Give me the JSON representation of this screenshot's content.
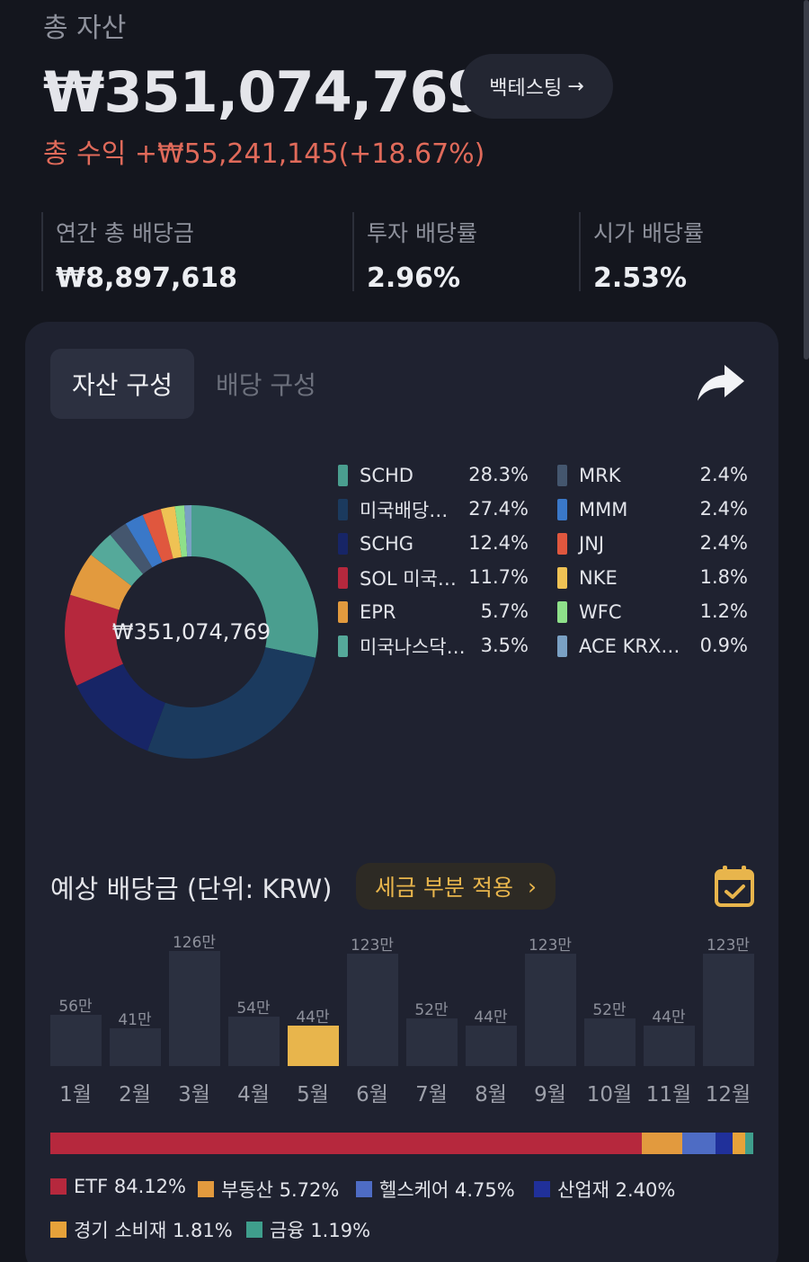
{
  "header": {
    "total_label": "총 자산",
    "total_value": "₩351,074,769",
    "backtest_label": "백테스팅",
    "backtest_arrow": "→",
    "profit_text": "총 수익 +₩55,241,145(+18.67%)"
  },
  "stats": [
    {
      "label": "연간 총 배당금",
      "value": "₩8,897,618"
    },
    {
      "label": "투자 배당률",
      "value": "2.96%"
    },
    {
      "label": "시가 배당률",
      "value": "2.53%"
    }
  ],
  "tabs": {
    "asset": "자산 구성",
    "dividend": "배당 구성"
  },
  "portfolio": {
    "center_value": "₩351,074,769",
    "holdings": [
      {
        "name": "SCHD",
        "pct": "28.3%",
        "value": 28.3,
        "color": "#4a9e8f"
      },
      {
        "name": "미국배당…",
        "pct": "27.4%",
        "value": 27.4,
        "color": "#1b3a5e"
      },
      {
        "name": "SCHG",
        "pct": "12.4%",
        "value": 12.4,
        "color": "#172566"
      },
      {
        "name": "SOL 미국…",
        "pct": "11.7%",
        "value": 11.7,
        "color": "#b6283d"
      },
      {
        "name": "EPR",
        "pct": "5.7%",
        "value": 5.7,
        "color": "#e29a3e"
      },
      {
        "name": "미국나스닥…",
        "pct": "3.5%",
        "value": 3.5,
        "color": "#55a99a"
      },
      {
        "name": "MRK",
        "pct": "2.4%",
        "value": 2.4,
        "color": "#44566e"
      },
      {
        "name": "MMM",
        "pct": "2.4%",
        "value": 2.4,
        "color": "#3a78c8"
      },
      {
        "name": "JNJ",
        "pct": "2.4%",
        "value": 2.4,
        "color": "#e0573e"
      },
      {
        "name": "NKE",
        "pct": "1.8%",
        "value": 1.8,
        "color": "#efc254"
      },
      {
        "name": "WFC",
        "pct": "1.2%",
        "value": 1.2,
        "color": "#8ee08a"
      },
      {
        "name": "ACE KRX…",
        "pct": "0.9%",
        "value": 0.9,
        "color": "#7aa1c4"
      }
    ]
  },
  "dividends": {
    "title": "예상 배당금 (단위: KRW)",
    "tax_label": "세금 부분 적용",
    "tax_arrow": "›",
    "months": [
      {
        "label": "1월",
        "amount": "56만",
        "value": 56
      },
      {
        "label": "2월",
        "amount": "41만",
        "value": 41
      },
      {
        "label": "3월",
        "amount": "126만",
        "value": 126
      },
      {
        "label": "4월",
        "amount": "54만",
        "value": 54
      },
      {
        "label": "5월",
        "amount": "44만",
        "value": 44,
        "active": true
      },
      {
        "label": "6월",
        "amount": "123만",
        "value": 123
      },
      {
        "label": "7월",
        "amount": "52만",
        "value": 52
      },
      {
        "label": "8월",
        "amount": "44만",
        "value": 44
      },
      {
        "label": "9월",
        "amount": "123만",
        "value": 123
      },
      {
        "label": "10월",
        "amount": "52만",
        "value": 52
      },
      {
        "label": "11월",
        "amount": "44만",
        "value": 44
      },
      {
        "label": "12월",
        "amount": "123만",
        "value": 123
      }
    ]
  },
  "sectors": [
    {
      "label": "ETF 84.12%",
      "value": 84.12,
      "color": "#b6283d"
    },
    {
      "label": "부동산 5.72%",
      "value": 5.72,
      "color": "#e29a3e"
    },
    {
      "label": "헬스케어 4.75%",
      "value": 4.75,
      "color": "#4e6cc4"
    },
    {
      "label": "산업재 2.40%",
      "value": 2.4,
      "color": "#20309a"
    },
    {
      "label": "경기 소비재 1.81%",
      "value": 1.81,
      "color": "#e6a23a"
    },
    {
      "label": "금융 1.19%",
      "value": 1.19,
      "color": "#3f9e8c"
    }
  ],
  "colors": {
    "accent": "#e8b54c",
    "profit": "#e06a5a",
    "bar": "#2b3040"
  }
}
